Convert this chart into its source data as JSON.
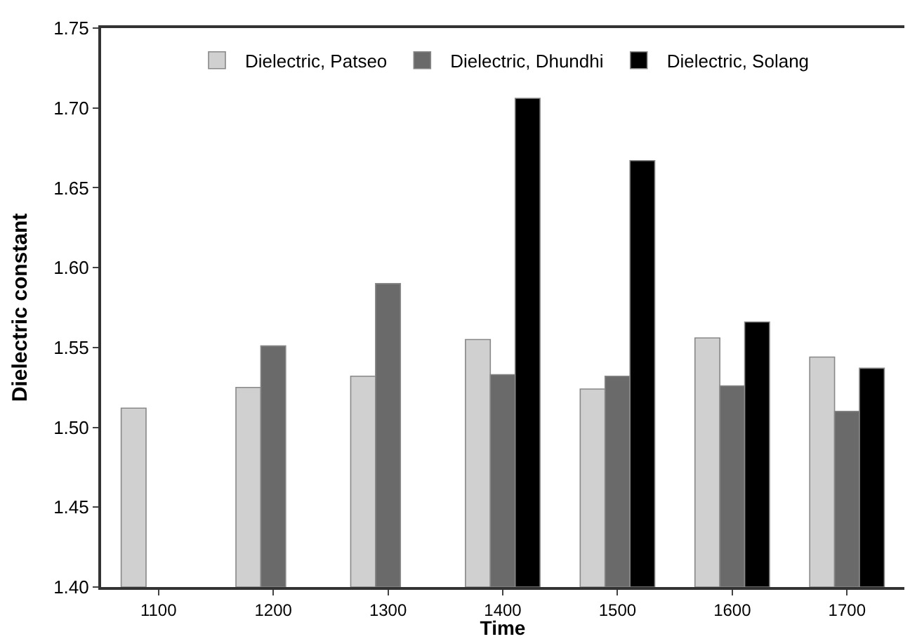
{
  "chart_data": {
    "type": "bar",
    "xlabel": "Time",
    "ylabel": "Dielectric constant",
    "categories": [
      "1100",
      "1200",
      "1300",
      "1400",
      "1500",
      "1600",
      "1700"
    ],
    "series": [
      {
        "name": "Dielectric, Patseo",
        "color": "#d0d0d0",
        "values": [
          1.512,
          1.525,
          1.532,
          1.555,
          1.524,
          1.556,
          1.544
        ]
      },
      {
        "name": "Dielectric, Dhundhi",
        "color": "#6a6a6a",
        "values": [
          null,
          1.551,
          1.59,
          1.533,
          1.532,
          1.526,
          1.51
        ]
      },
      {
        "name": "Dielectric, Solang",
        "color": "#000000",
        "values": [
          null,
          null,
          null,
          1.706,
          1.667,
          1.566,
          1.537
        ]
      }
    ],
    "ylim": [
      1.4,
      1.75
    ],
    "yticks": [
      {
        "value": 1.4,
        "label": "1.40"
      },
      {
        "value": 1.45,
        "label": "1.45"
      },
      {
        "value": 1.5,
        "label": "1.50"
      },
      {
        "value": 1.55,
        "label": "1.55"
      },
      {
        "value": 1.6,
        "label": "1.60"
      },
      {
        "value": 1.65,
        "label": "1.65"
      },
      {
        "value": 1.7,
        "label": "1.70"
      },
      {
        "value": 1.75,
        "label": "1.75"
      }
    ],
    "legend": "top"
  }
}
